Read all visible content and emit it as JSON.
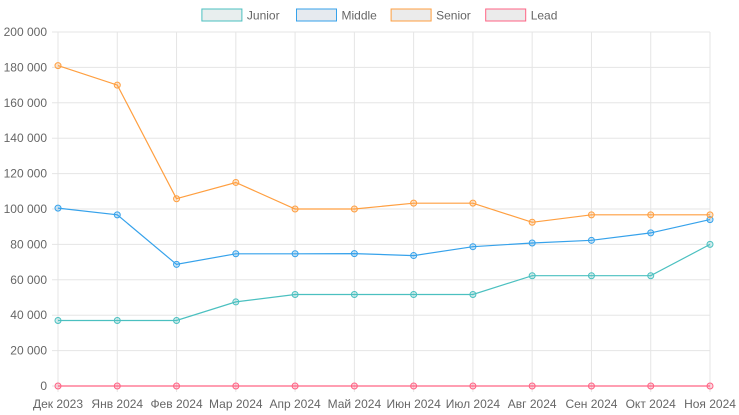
{
  "chart_data": {
    "type": "line",
    "categories": [
      "Дек 2023",
      "Янв 2024",
      "Фев 2024",
      "Мар 2024",
      "Апр 2024",
      "Май 2024",
      "Июн 2024",
      "Июл 2024",
      "Авг 2024",
      "Сен 2024",
      "Окт 2024",
      "Ноя 2024"
    ],
    "ylim": [
      0,
      200000
    ],
    "yticks": [
      0,
      20000,
      40000,
      60000,
      80000,
      100000,
      120000,
      140000,
      160000,
      180000,
      200000
    ],
    "ytick_labels": [
      "0",
      "20 000",
      "40 000",
      "60 000",
      "80 000",
      "100 000",
      "120 000",
      "140 000",
      "160 000",
      "180 000",
      "200 000"
    ],
    "grid": true,
    "legend_position": "top-center",
    "series": [
      {
        "name": "Junior",
        "color": "#4bc0c0",
        "point_fill": "rgba(75,192,192,0.25)",
        "legend_fill": "#e8eeee",
        "values": [
          37000,
          37000,
          37000,
          47500,
          51700,
          51700,
          51700,
          51700,
          62300,
          62300,
          62300,
          80000
        ]
      },
      {
        "name": "Middle",
        "color": "#36a2eb",
        "point_fill": "rgba(54,162,235,0.25)",
        "legend_fill": "#e6eaef",
        "values": [
          100500,
          96700,
          68700,
          74700,
          74700,
          74800,
          73700,
          78700,
          80800,
          82300,
          86500,
          94000
        ]
      },
      {
        "name": "Senior",
        "color": "#ff9f40",
        "point_fill": "rgba(255,159,64,0.25)",
        "legend_fill": "#ebebeb",
        "values": [
          181000,
          170000,
          105800,
          115000,
          100000,
          100000,
          103300,
          103300,
          92500,
          96700,
          96700,
          96700
        ]
      },
      {
        "name": "Lead",
        "color": "#ff6384",
        "point_fill": "rgba(255,99,132,0.25)",
        "legend_fill": "#ebebeb",
        "values": [
          0,
          0,
          0,
          0,
          0,
          0,
          0,
          0,
          0,
          0,
          0,
          0
        ]
      }
    ]
  }
}
